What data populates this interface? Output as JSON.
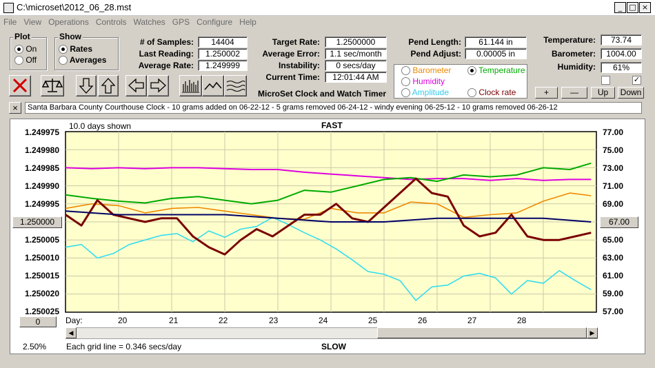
{
  "window": {
    "title": "C:\\microset\\2012_06_28.mst",
    "min": "_",
    "max": "□",
    "close": "×"
  },
  "menu": [
    "File",
    "View",
    "Operations",
    "Controls",
    "Watches",
    "GPS",
    "Configure",
    "Help"
  ],
  "plot": {
    "label": "Plot",
    "on": "On",
    "off": "Off",
    "selected": "On"
  },
  "show": {
    "label": "Show",
    "rates": "Rates",
    "averages": "Averages",
    "selected": "Rates"
  },
  "stats": {
    "samples_label": "# of Samples:",
    "samples": "14404",
    "last_label": "Last Reading:",
    "last": "1.250002",
    "avg_label": "Average Rate:",
    "avg": "1.249999",
    "target_label": "Target Rate:",
    "target": "1.2500000",
    "avgerr_label": "Average Error:",
    "avgerr": "1.1 sec/month",
    "instab_label": "Instability:",
    "instab": "0 secs/day",
    "time_label": "Current Time:",
    "time": "12:01:44 AM",
    "pendlen_label": "Pend Length:",
    "pendlen": "61.144 in",
    "pendadj_label": "Pend Adjust:",
    "pendadj": "0.00005 in",
    "temp_label": "Temperature:",
    "temp": "73.74",
    "baro_label": "Barometer:",
    "baro": "1004.00",
    "hum_label": "Humidity:",
    "hum": "61%"
  },
  "app_title": "MicroSet Clock and Watch Timer",
  "sensor_options": {
    "barometer": "Barometer",
    "temperature": "Temperature",
    "humidity": "Humidity",
    "amplitude": "Amplitude",
    "clock_rate": "Clock rate",
    "selected": "Temperature"
  },
  "right_buttons": {
    "plus": "+",
    "minus": "—",
    "up": "Up",
    "down": "Down"
  },
  "note": {
    "close": "×",
    "text": "Santa Barbara County Courthouse Clock - 10 grams added on 06-22-12 - 5 grams removed 06-24-12 - windy evening 06-25-12 - 10 grams removed 06-26-12"
  },
  "chart_meta": {
    "days_shown": "10.0 days shown",
    "top": "FAST",
    "bottom": "SLOW",
    "day_label": "Day:",
    "left_center_btn": "1.250000",
    "right_center_btn": "67.00",
    "zero_btn": "0",
    "percent": "2.50%",
    "grid_note": "Each grid line = 0.346 secs/day"
  },
  "colors": {
    "plot_bg": "#ffffcc",
    "rate": "#7a0000",
    "average": "#000066",
    "temperature": "#00aa00",
    "barometer": "#ee8800",
    "humidity": "#dd00dd",
    "amplitude": "#33ddee"
  },
  "chart_data": {
    "type": "line",
    "x_ticks": [
      "20",
      "21",
      "22",
      "23",
      "24",
      "25",
      "26",
      "27",
      "28"
    ],
    "xlim": [
      19.0,
      29.0
    ],
    "left_axis": {
      "ticks": [
        "1.249975",
        "1.249980",
        "1.249985",
        "1.249990",
        "1.249995",
        "1.250000",
        "1.250005",
        "1.250010",
        "1.250015",
        "1.250020",
        "1.250025"
      ],
      "inverted": true
    },
    "right_axis": {
      "ticks": [
        "77.00",
        "75.00",
        "73.00",
        "71.00",
        "69.00",
        "67.00",
        "65.00",
        "63.00",
        "61.00",
        "59.00",
        "57.00"
      ]
    },
    "grid": true,
    "series": [
      {
        "key": "rate",
        "axis": "left",
        "x": [
          19.0,
          19.3,
          19.6,
          19.9,
          20.2,
          20.5,
          20.8,
          21.1,
          21.4,
          21.7,
          22.0,
          22.3,
          22.6,
          22.9,
          23.2,
          23.5,
          23.8,
          24.1,
          24.4,
          24.7,
          25.0,
          25.3,
          25.6,
          25.9,
          26.2,
          26.5,
          26.8,
          27.1,
          27.4,
          27.7,
          28.0,
          28.3,
          28.6,
          28.9
        ],
        "y": [
          1.249998,
          1.250001,
          1.249994,
          1.249998,
          1.249999,
          1.25,
          1.249999,
          1.249999,
          1.250004,
          1.250007,
          1.250009,
          1.250005,
          1.250002,
          1.250004,
          1.250001,
          1.249998,
          1.249998,
          1.249995,
          1.249999,
          1.25,
          1.249996,
          1.249992,
          1.249988,
          1.249992,
          1.249993,
          1.250001,
          1.250004,
          1.250003,
          1.249998,
          1.250004,
          1.250005,
          1.250005,
          1.250004,
          1.250003
        ]
      },
      {
        "key": "average",
        "axis": "left",
        "x": [
          19.0,
          20.0,
          21.0,
          22.0,
          23.0,
          24.0,
          25.0,
          26.0,
          27.0,
          28.0,
          28.9
        ],
        "y": [
          1.249997,
          1.249998,
          1.249998,
          1.249998,
          1.249999,
          1.25,
          1.25,
          1.249999,
          1.249999,
          1.249999,
          1.25
        ]
      },
      {
        "key": "temperature",
        "axis": "right",
        "x": [
          19.0,
          19.5,
          20.0,
          20.5,
          21.0,
          21.5,
          22.0,
          22.5,
          23.0,
          23.5,
          24.0,
          24.5,
          25.0,
          25.5,
          26.0,
          26.5,
          27.0,
          27.5,
          28.0,
          28.5,
          28.9
        ],
        "y": [
          70.0,
          69.6,
          69.3,
          69.1,
          69.6,
          69.8,
          69.4,
          69.0,
          69.4,
          70.5,
          70.3,
          71.0,
          71.7,
          71.9,
          71.5,
          72.2,
          72.0,
          72.2,
          73.0,
          72.8,
          73.5
        ]
      },
      {
        "key": "barometer",
        "axis": "right",
        "x": [
          19.0,
          19.5,
          20.0,
          20.5,
          21.0,
          21.5,
          22.0,
          22.5,
          23.0,
          23.5,
          24.0,
          24.5,
          25.0,
          25.5,
          26.0,
          26.5,
          27.0,
          27.5,
          28.0,
          28.5,
          28.9
        ],
        "y": [
          68.5,
          69.0,
          68.8,
          68.0,
          68.5,
          68.6,
          68.2,
          67.8,
          67.4,
          67.3,
          68.5,
          68.0,
          68.0,
          69.2,
          69.0,
          67.5,
          67.8,
          68.0,
          69.3,
          70.2,
          69.9
        ]
      },
      {
        "key": "humidity",
        "axis": "right",
        "x": [
          19.0,
          19.5,
          20.0,
          20.5,
          21.0,
          21.5,
          22.0,
          22.5,
          23.0,
          23.5,
          24.0,
          24.5,
          25.0,
          25.5,
          26.0,
          26.5,
          27.0,
          27.5,
          28.0,
          28.5,
          28.9
        ],
        "y": [
          73.0,
          72.9,
          73.0,
          72.9,
          73.0,
          73.0,
          72.9,
          72.8,
          72.8,
          72.5,
          72.3,
          72.1,
          71.9,
          71.7,
          71.8,
          71.8,
          71.6,
          71.8,
          71.6,
          71.7,
          71.7
        ]
      },
      {
        "key": "amplitude",
        "axis": "right",
        "x": [
          19.0,
          19.3,
          19.6,
          19.9,
          20.2,
          20.5,
          20.8,
          21.1,
          21.4,
          21.7,
          22.0,
          22.3,
          22.6,
          22.9,
          23.2,
          23.5,
          23.8,
          24.1,
          24.4,
          24.7,
          25.0,
          25.3,
          25.6,
          25.9,
          26.2,
          26.5,
          26.8,
          27.1,
          27.4,
          27.7,
          28.0,
          28.3,
          28.6,
          28.9
        ],
        "y": [
          64.2,
          64.5,
          63.0,
          63.5,
          64.5,
          65.0,
          65.5,
          65.7,
          64.8,
          66.0,
          65.3,
          66.2,
          66.5,
          67.5,
          66.7,
          65.8,
          65.0,
          64.0,
          62.8,
          61.5,
          61.2,
          60.5,
          58.3,
          59.8,
          60.0,
          61.0,
          61.3,
          60.8,
          59.0,
          60.5,
          60.2,
          61.6,
          60.5,
          59.5
        ]
      }
    ]
  }
}
